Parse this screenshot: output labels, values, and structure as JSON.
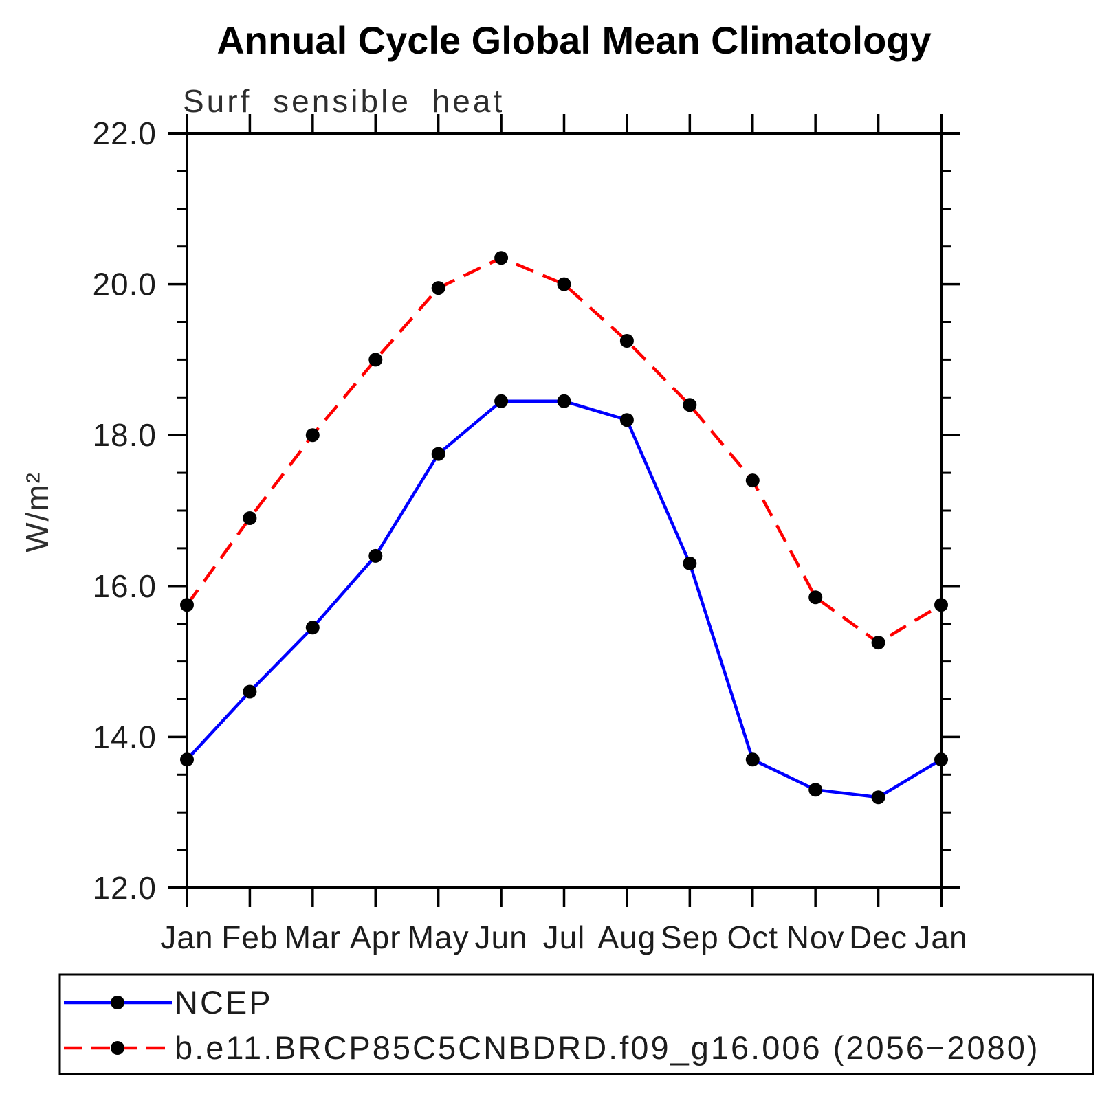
{
  "chart": {
    "title": "Annual Cycle Global Mean Climatology",
    "subtitle": "Surf sensible heat",
    "y_axis_label": "W/m²"
  },
  "chart_data": {
    "type": "line",
    "title": "Annual Cycle Global Mean Climatology",
    "subtitle": "Surf sensible heat",
    "xlabel": "",
    "ylabel": "W/m²",
    "ylim": [
      12.0,
      22.0
    ],
    "y_major_step": 2.0,
    "y_minor_step": 0.5,
    "y_tick_labels": [
      "22.0",
      "20.0",
      "18.0",
      "16.0",
      "14.0",
      "12.0"
    ],
    "grid": false,
    "legend_position": "bottom",
    "categories": [
      "Jan",
      "Feb",
      "Mar",
      "Apr",
      "May",
      "Jun",
      "Jul",
      "Aug",
      "Sep",
      "Oct",
      "Nov",
      "Dec",
      "Jan"
    ],
    "series": [
      {
        "name": "NCEP",
        "color": "#0000ff",
        "line_style": "solid",
        "marker": "filled-circle",
        "marker_color": "#000000",
        "values": [
          13.7,
          14.6,
          15.45,
          16.4,
          17.75,
          18.45,
          18.45,
          18.2,
          16.3,
          13.7,
          13.3,
          13.2,
          13.7
        ]
      },
      {
        "name": "b.e11.BRCP85C5CNBDRD.f09_g16.006 (2056−2080)",
        "color": "#ff0000",
        "line_style": "dashed",
        "marker": "filled-circle",
        "marker_color": "#000000",
        "values": [
          15.75,
          16.9,
          18.0,
          19.0,
          19.95,
          20.35,
          20.0,
          19.25,
          18.4,
          17.4,
          15.85,
          15.25,
          15.75
        ]
      }
    ]
  }
}
